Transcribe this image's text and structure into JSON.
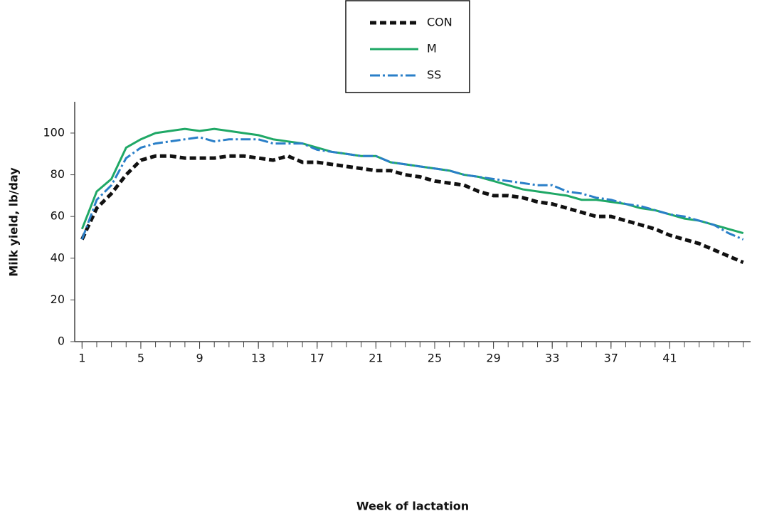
{
  "chart_data": {
    "type": "line",
    "x_label": "Week of lactation",
    "y_label": "Milk yield, lb/day",
    "x": [
      1,
      2,
      3,
      4,
      5,
      6,
      7,
      8,
      9,
      10,
      11,
      12,
      13,
      14,
      15,
      16,
      17,
      18,
      19,
      20,
      21,
      22,
      23,
      24,
      25,
      26,
      27,
      28,
      29,
      30,
      31,
      32,
      33,
      34,
      35,
      36,
      37,
      38,
      39,
      40,
      41,
      42,
      43,
      44,
      45,
      46
    ],
    "series": [
      {
        "name": "CON",
        "color": "#111111",
        "dash": "9,5",
        "width": 5,
        "values": [
          49,
          64,
          71,
          80,
          87,
          89,
          89,
          88,
          88,
          88,
          89,
          89,
          88,
          87,
          89,
          86,
          86,
          85,
          84,
          83,
          82,
          82,
          80,
          79,
          77,
          76,
          75,
          72,
          70,
          70,
          69,
          67,
          66,
          64,
          62,
          60,
          60,
          58,
          56,
          54,
          51,
          49,
          47,
          44,
          41,
          38
        ]
      },
      {
        "name": "M",
        "color": "#1fa866",
        "dash": "",
        "width": 3,
        "values": [
          54,
          72,
          78,
          93,
          97,
          100,
          101,
          102,
          101,
          102,
          101,
          100,
          99,
          97,
          96,
          95,
          93,
          91,
          90,
          89,
          89,
          86,
          85,
          84,
          83,
          82,
          80,
          79,
          77,
          75,
          73,
          72,
          71,
          70,
          68,
          68,
          67,
          66,
          64,
          63,
          61,
          59,
          58,
          56,
          54,
          52
        ]
      },
      {
        "name": "SS",
        "color": "#2a7fc8",
        "dash": "14,4,3,4",
        "width": 3,
        "values": [
          49,
          68,
          75,
          88,
          93,
          95,
          96,
          97,
          98,
          96,
          97,
          97,
          97,
          95,
          95,
          95,
          92,
          91,
          90,
          89,
          89,
          86,
          85,
          84,
          83,
          82,
          80,
          79,
          78,
          77,
          76,
          75,
          75,
          72,
          71,
          69,
          68,
          66,
          65,
          63,
          61,
          60,
          58,
          56,
          52,
          49
        ]
      }
    ],
    "xlim": [
      0.5,
      46.5
    ],
    "xticks": [
      1,
      5,
      9,
      13,
      17,
      21,
      25,
      29,
      33,
      37,
      41
    ],
    "ylim": [
      0,
      115
    ],
    "yticks": [
      0,
      20,
      40,
      60,
      80,
      100
    ],
    "legend": "top"
  }
}
